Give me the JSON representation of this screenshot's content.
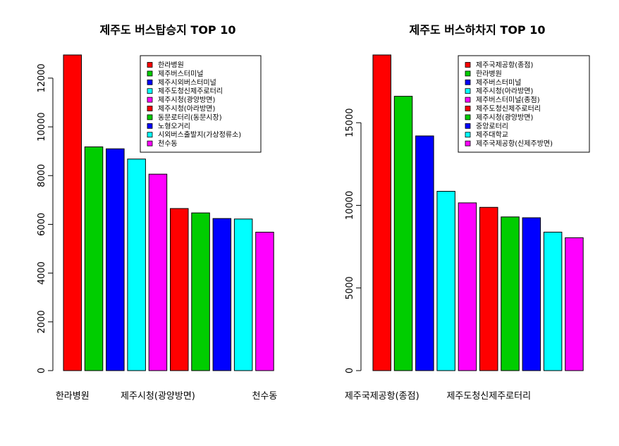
{
  "chart_data": [
    {
      "type": "bar",
      "title": "제주도 버스탑승지 TOP 10",
      "xlabel": "",
      "ylabel": "",
      "ylim": [
        0,
        12950
      ],
      "yticks": [
        0,
        2000,
        4000,
        6000,
        8000,
        10000,
        12000
      ],
      "categories": [
        "한라병원",
        "제주버스터미널",
        "제주시외버스터미널",
        "제주도청신제주로터리",
        "제주시청(광양방면)",
        "제주시청(아라방면)",
        "동문로터리(동문시장)",
        "노형오거리",
        "시외버스출발지(가상정류소)",
        "천수동"
      ],
      "visible_category_labels": [
        {
          "index": 0,
          "text": "한라병원"
        },
        {
          "index": 4,
          "text": "제주시청(광양방면)"
        },
        {
          "index": 9,
          "text": "천수동"
        }
      ],
      "values": [
        12950,
        9180,
        9100,
        8680,
        8060,
        6650,
        6470,
        6240,
        6220,
        5680
      ],
      "colors": [
        "#FF0000",
        "#00CD00",
        "#0000FF",
        "#00FFFF",
        "#FF00FF",
        "#FF0000",
        "#00CD00",
        "#0000FF",
        "#00FFFF",
        "#FF00FF"
      ],
      "legend": {
        "placement": "top-right",
        "labels": [
          "한라병원",
          "제주버스터미널",
          "제주시외버스터미널",
          "제주도청신제주로터리",
          "제주시청(광양방면)",
          "제주시청(아라방면)",
          "동문로터리(동문시장)",
          "노형오거리",
          "시외버스출발지(가상정류소)",
          "천수동"
        ]
      },
      "grid": false
    },
    {
      "type": "bar",
      "title": "제주도 버스하차지 TOP 10",
      "xlabel": "",
      "ylabel": "",
      "ylim": [
        0,
        19100
      ],
      "yticks": [
        0,
        5000,
        10000,
        15000
      ],
      "categories": [
        "제주국제공항(종점)",
        "한라병원",
        "제주버스터미널",
        "제주시청(아라방면)",
        "제주버스터미널(종점)",
        "제주도청신제주로터리",
        "제주시청(광양방면)",
        "중앙로터리",
        "제주대학교",
        "제주국제공항(신제주방면)"
      ],
      "visible_category_labels": [
        {
          "index": 0,
          "text": "제주국제공항(종점)"
        },
        {
          "index": 5,
          "text": "제주도청신제주로터리"
        }
      ],
      "values": [
        19100,
        16600,
        14200,
        10850,
        10150,
        9880,
        9300,
        9250,
        8380,
        8040
      ],
      "colors": [
        "#FF0000",
        "#00CD00",
        "#0000FF",
        "#00FFFF",
        "#FF00FF",
        "#FF0000",
        "#00CD00",
        "#0000FF",
        "#00FFFF",
        "#FF00FF"
      ],
      "legend": {
        "placement": "top-right",
        "labels": [
          "제주국제공항(종점)",
          "한라병원",
          "제주버스터미널",
          "제주시청(아라방면)",
          "제주버스터미널(종점)",
          "제주도청신제주로터리",
          "제주시청(광양방면)",
          "중앙로터리",
          "제주대학교",
          "제주국제공항(신제주방면)"
        ]
      },
      "grid": false
    }
  ]
}
